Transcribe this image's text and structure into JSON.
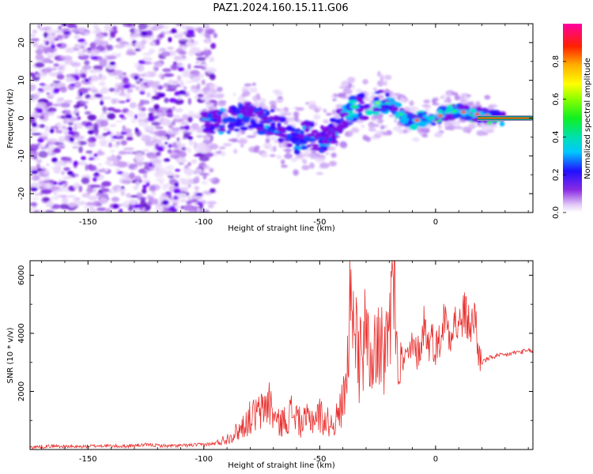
{
  "figure": {
    "title": "PAZ1.2024.160.15.11.G06"
  },
  "chart_data": [
    {
      "type": "heatmap",
      "title": "",
      "xlabel": "Height of straight line (km)",
      "ylabel": "Frequency (Hz)",
      "xlim": [
        -175,
        42
      ],
      "ylim": [
        -25,
        25
      ],
      "xticks": [
        -150,
        -100,
        -50,
        0
      ],
      "yticks": [
        -20,
        -10,
        0,
        10,
        20
      ],
      "ridge_frequency": {
        "x": [
          -130,
          -122,
          -100,
          -95,
          -90,
          -85,
          -80,
          -75,
          -70,
          -65,
          -60,
          -55,
          -50,
          -45,
          -40,
          -35,
          -30,
          -25,
          -20,
          -15,
          -10,
          -5,
          0,
          5,
          10,
          15,
          20,
          25,
          30,
          35,
          42
        ],
        "y": [
          1,
          2.5,
          -1,
          -1,
          -1,
          0,
          1,
          -1,
          -1,
          -4,
          -6,
          -4,
          -6,
          -4,
          0,
          3,
          3,
          4,
          4,
          1,
          -1,
          0,
          0,
          1.5,
          2,
          1,
          1,
          0,
          0,
          0,
          0
        ]
      },
      "colorbar": {
        "label": "Normalized spectral amplitude",
        "range": [
          0,
          1
        ],
        "ticks": [
          0.0,
          0.2,
          0.4,
          0.6,
          0.8
        ],
        "tick_labels": [
          "0.0",
          "0.2",
          "0.4",
          "0.6",
          "0.8"
        ],
        "colormap": "gist_ncar"
      }
    },
    {
      "type": "line",
      "title": "",
      "xlabel": "Height of straight line (km)",
      "ylabel": "SNR (10 * v/v)",
      "xlim": [
        -175,
        42
      ],
      "ylim": [
        0,
        6500
      ],
      "xticks": [
        -150,
        -100,
        -50,
        0
      ],
      "yticks": [
        2000,
        4000,
        6000
      ],
      "color": "#e8312f",
      "series": [
        {
          "x": [
            -175,
            -165,
            -155,
            -145,
            -135,
            -125,
            -115,
            -105,
            -95,
            -90,
            -85,
            -80,
            -75,
            -72,
            -70,
            -68,
            -65,
            -62,
            -60,
            -58,
            -55,
            -52,
            -50,
            -48,
            -45,
            -42,
            -40,
            -38,
            -37,
            -36,
            -35,
            -34,
            -33,
            -32,
            -31,
            -30,
            -28,
            -26,
            -25,
            -24,
            -22,
            -20,
            -19,
            -18,
            -17,
            -16,
            -15,
            -14,
            -12,
            -10,
            -8,
            -6,
            -5,
            -4,
            -3,
            -2,
            0,
            2,
            4,
            6,
            8,
            10,
            12,
            14,
            16,
            17,
            18,
            20,
            22,
            25,
            30,
            35,
            42
          ],
          "y": [
            80,
            120,
            90,
            130,
            110,
            160,
            120,
            150,
            200,
            380,
            650,
            1100,
            1300,
            1700,
            1200,
            900,
            1000,
            1300,
            1150,
            850,
            1050,
            1100,
            1200,
            1000,
            900,
            1100,
            1700,
            3000,
            4500,
            4800,
            3000,
            4700,
            2800,
            4200,
            3200,
            4500,
            2900,
            4300,
            3200,
            4200,
            3000,
            3800,
            4800,
            6400,
            4000,
            3400,
            3300,
            3000,
            3200,
            3500,
            3300,
            3700,
            4400,
            4000,
            3600,
            3900,
            3500,
            3800,
            4600,
            4000,
            4500,
            4100,
            4700,
            4400,
            4200,
            4900,
            3500,
            3000,
            3100,
            3200,
            3250,
            3350,
            3400
          ]
        }
      ]
    }
  ]
}
